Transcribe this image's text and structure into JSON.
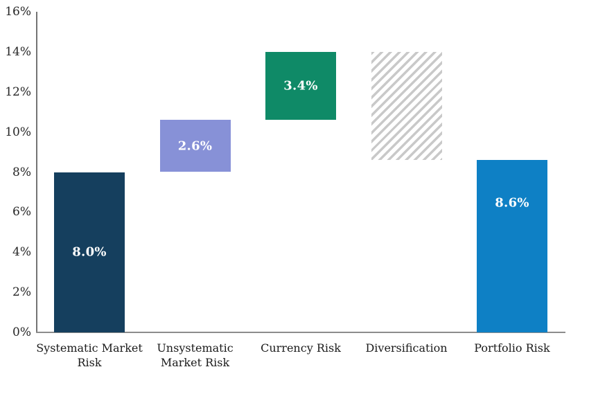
{
  "chart_data": {
    "type": "bar",
    "subtype": "waterfall",
    "title": "",
    "xlabel": "",
    "ylabel": "",
    "ylim": [
      0,
      16
    ],
    "grid": false,
    "legend": false,
    "y_axis": {
      "min": 0,
      "max": 16,
      "tick_step": 2,
      "tick_labels": [
        "0%",
        "2%",
        "4%",
        "6%",
        "8%",
        "10%",
        "12%",
        "14%",
        "16%"
      ]
    },
    "categories": [
      "Systematic Market Risk",
      "Unsystematic Market Risk",
      "Currency Risk",
      "Diversification",
      "Portfolio Risk"
    ],
    "bars": [
      {
        "category": "Systematic Market Risk",
        "label_lines": [
          "Systematic Market",
          "Risk"
        ],
        "start": 0.0,
        "end": 8.0,
        "value": 8.0,
        "value_label": "8.0%",
        "color": "#153f5e",
        "fill": "solid",
        "label_position": "center"
      },
      {
        "category": "Unsystematic Market Risk",
        "label_lines": [
          "Unsystematic",
          "Market Risk"
        ],
        "start": 8.0,
        "end": 10.6,
        "value": 2.6,
        "value_label": "2.6%",
        "color": "#8791d7",
        "fill": "solid",
        "label_position": "center"
      },
      {
        "category": "Currency Risk",
        "label_lines": [
          "Currency Risk"
        ],
        "start": 10.6,
        "end": 14.0,
        "value": 3.4,
        "value_label": "3.4%",
        "color": "#0f8a67",
        "fill": "solid",
        "label_position": "center"
      },
      {
        "category": "Diversification",
        "label_lines": [
          "Diversification"
        ],
        "start": 8.6,
        "end": 14.0,
        "value": -5.4,
        "value_label": "",
        "color": "#c9c9c9",
        "fill": "hatched",
        "label_position": "none"
      },
      {
        "category": "Portfolio Risk",
        "label_lines": [
          "Portfolio Risk"
        ],
        "start": 0.0,
        "end": 8.6,
        "value": 8.6,
        "value_label": "8.6%",
        "color": "#0e80c5",
        "fill": "solid",
        "label_position": "upper"
      }
    ],
    "colors": {
      "axis_line": "#7f7f7f",
      "tick_label": "#262626",
      "category_label": "#1a1a1a",
      "value_label": "#ffffff",
      "hatch_stripe": "#c9c9c9",
      "background": "#ffffff"
    }
  }
}
